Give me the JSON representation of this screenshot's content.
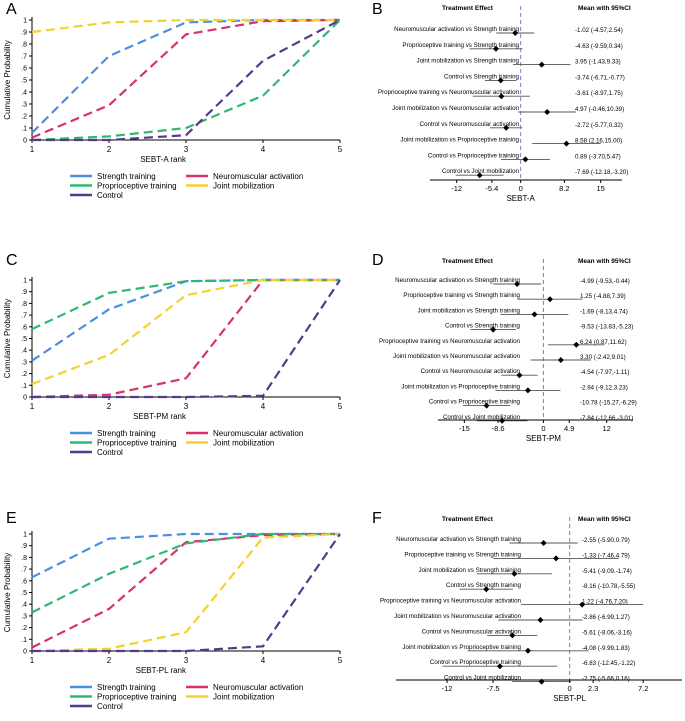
{
  "figure": {
    "colors": {
      "Strength training": "#4a90e2",
      "Neuromuscular activation": "#d6336c",
      "Proprioceptive training": "#2eb872",
      "Joint mobilization": "#f2d22e",
      "Control": "#553a8c",
      "forest_ref": "#7b7bdb",
      "axis": "#000000"
    }
  },
  "chart_data": [
    {
      "panel": "A",
      "type": "line",
      "xlabel": "SEBT-A rank",
      "ylabel": "Cumulative Probability",
      "x": [
        1,
        2,
        3,
        4,
        5
      ],
      "xticks": [
        "1",
        "2",
        "3",
        "4",
        "5"
      ],
      "ylim": [
        0,
        1
      ],
      "yticks": [
        "0",
        ".1",
        ".2",
        ".3",
        ".4",
        ".5",
        ".6",
        ".7",
        ".8",
        ".9",
        "1"
      ],
      "series": [
        {
          "name": "Strength training",
          "values": [
            0.06,
            0.7,
            0.98,
            1.0,
            1.0
          ]
        },
        {
          "name": "Neuromuscular activation",
          "values": [
            0.02,
            0.29,
            0.88,
            0.99,
            1.0
          ]
        },
        {
          "name": "Proprioceptive training",
          "values": [
            0.0,
            0.03,
            0.1,
            0.37,
            1.0
          ]
        },
        {
          "name": "Joint mobilization",
          "values": [
            0.9,
            0.98,
            1.0,
            1.0,
            1.0
          ]
        },
        {
          "name": "Control",
          "values": [
            0.0,
            0.0,
            0.04,
            0.66,
            1.0
          ]
        }
      ]
    },
    {
      "panel": "B",
      "type": "forest",
      "header_left": "Treatment Effect",
      "header_right": "Mean with 95%CI",
      "xlabel": "SEBT-A",
      "xlim": [
        -17,
        19
      ],
      "ticks": [
        -12,
        -5.4,
        0,
        8.2,
        15
      ],
      "tick_labels": [
        "-12",
        "-5.4",
        "0",
        "8.2",
        "15"
      ],
      "rows": [
        {
          "label": "Neuromuscular activation vs Strength training",
          "mean": -1.02,
          "lo": -4.57,
          "hi": 2.54,
          "ci_text": "-1.02 (-4.57,2.54)"
        },
        {
          "label": "Proprioceptive training vs Strength training",
          "mean": -4.63,
          "lo": -9.59,
          "hi": 0.34,
          "ci_text": "-4.63 (-9.59,0.34)"
        },
        {
          "label": "Joint mobilization vs Strength training",
          "mean": 3.95,
          "lo": -1.43,
          "hi": 9.33,
          "ci_text": "3.95 (-1.43,9.33)"
        },
        {
          "label": "Control vs Strength training",
          "mean": -3.74,
          "lo": -6.71,
          "hi": -0.77,
          "ci_text": "-3.74 (-6.71,-0.77)"
        },
        {
          "label": "Proprioceptive training vs Neuromuscular activation",
          "mean": -3.61,
          "lo": -8.97,
          "hi": 1.75,
          "ci_text": "-3.61 (-8.97,1.75)"
        },
        {
          "label": "Joint mobilization vs Neuromuscular activation",
          "mean": 4.97,
          "lo": -0.46,
          "hi": 10.39,
          "ci_text": "4.97 (-0.46,10.39)"
        },
        {
          "label": "Control vs Neuromuscular activation",
          "mean": -2.72,
          "lo": -5.77,
          "hi": 0.32,
          "ci_text": "-2.72 (-5.77,0.32)"
        },
        {
          "label": "Joint mobilization vs Proprioceptive training",
          "mean": 8.58,
          "lo": 2.16,
          "hi": 15.0,
          "ci_text": "8.58 (2.16,15.00)"
        },
        {
          "label": "Control vs Proprioceptive training",
          "mean": 0.89,
          "lo": -3.7,
          "hi": 5.47,
          "ci_text": "0.89 (-3.70,5.47)"
        },
        {
          "label": "Control vs Joint mobilization",
          "mean": -7.69,
          "lo": -12.18,
          "hi": -3.2,
          "ci_text": "-7.69 (-12.18,-3.20)"
        }
      ]
    },
    {
      "panel": "C",
      "type": "line",
      "xlabel": "SEBT-PM rank",
      "ylabel": "Cumulative Probability",
      "x": [
        1,
        2,
        3,
        4,
        5
      ],
      "xticks": [
        "1",
        "2",
        "3",
        "4",
        "5"
      ],
      "ylim": [
        0,
        1
      ],
      "yticks": [
        "0",
        ".1",
        ".2",
        ".3",
        ".4",
        ".5",
        ".6",
        ".7",
        ".8",
        ".9",
        "1"
      ],
      "series": [
        {
          "name": "Strength training",
          "values": [
            0.31,
            0.75,
            0.99,
            1.0,
            1.0
          ]
        },
        {
          "name": "Neuromuscular activation",
          "values": [
            0.0,
            0.02,
            0.16,
            1.0,
            1.0
          ]
        },
        {
          "name": "Proprioceptive training",
          "values": [
            0.58,
            0.89,
            0.99,
            1.0,
            1.0
          ]
        },
        {
          "name": "Joint mobilization",
          "values": [
            0.11,
            0.36,
            0.87,
            1.0,
            1.0
          ]
        },
        {
          "name": "Control",
          "values": [
            0.0,
            0.0,
            0.0,
            0.01,
            1.0
          ]
        }
      ]
    },
    {
      "panel": "D",
      "type": "forest",
      "header_left": "Treatment Effect",
      "header_right": "Mean with 95%CI",
      "xlabel": "SEBT-PM",
      "xlim": [
        -20,
        17
      ],
      "ticks": [
        -15,
        -8.6,
        0,
        4.9,
        12
      ],
      "tick_labels": [
        "-15",
        "-8.6",
        "0",
        "4.9",
        "12"
      ],
      "rows": [
        {
          "label": "Neuromuscular activation  vs Strength training",
          "mean": -4.99,
          "lo": -9.53,
          "hi": -0.44,
          "ci_text": "-4.99 (-9.53,-0.44)"
        },
        {
          "label": "Proprioceptive training vs Strength training",
          "mean": 1.25,
          "lo": -4.88,
          "hi": 7.39,
          "ci_text": "1.25 (-4.88,7.39)"
        },
        {
          "label": "Joint mobilization vs Strength training",
          "mean": -1.69,
          "lo": -8.13,
          "hi": 4.74,
          "ci_text": "-1.69 (-8.13,4.74)"
        },
        {
          "label": "Control vs Strength training",
          "mean": -9.53,
          "lo": -13.83,
          "hi": -5.23,
          "ci_text": "-9.53 (-13.83,-5.23)"
        },
        {
          "label": "Proprioceptive training vs Neuromuscular activation",
          "mean": 6.24,
          "lo": 0.87,
          "hi": 11.62,
          "ci_text": "6.24 (0.87,11.62)"
        },
        {
          "label": "Joint mobilization vs Neuromuscular activation",
          "mean": 3.3,
          "lo": -2.42,
          "hi": 9.01,
          "ci_text": "3.30 (-2.42,9.01)"
        },
        {
          "label": "Control vs Neuromuscular activation",
          "mean": -4.54,
          "lo": -7.97,
          "hi": -1.11,
          "ci_text": "-4.54 (-7.97,-1.11)"
        },
        {
          "label": "Joint mobilization vs Proprioceptive training",
          "mean": -2.94,
          "lo": -9.12,
          "hi": 3.23,
          "ci_text": "-2.94 (-9.12,3.23)"
        },
        {
          "label": "Control vs Proprioceptive training",
          "mean": -10.78,
          "lo": -15.27,
          "hi": -6.29,
          "ci_text": "-10.78 (-15.27,-6.29)"
        },
        {
          "label": "Control vs Joint mobilization",
          "mean": -7.84,
          "lo": -12.66,
          "hi": -3.01,
          "ci_text": "-7.84 (-12.66,-3.01)"
        }
      ]
    },
    {
      "panel": "E",
      "type": "line",
      "xlabel": "SEBT-PL rank",
      "ylabel": "Cumulative Probability",
      "x": [
        1,
        2,
        3,
        4,
        5
      ],
      "xticks": [
        "1",
        "2",
        "3",
        "4",
        "5"
      ],
      "ylim": [
        0,
        1
      ],
      "yticks": [
        "0",
        ".1",
        ".2",
        ".3",
        ".4",
        ".5",
        ".6",
        ".7",
        ".8",
        ".9",
        "1"
      ],
      "series": [
        {
          "name": "Strength training",
          "values": [
            0.63,
            0.96,
            1.0,
            1.0,
            1.0
          ]
        },
        {
          "name": "Neuromuscular activation",
          "values": [
            0.03,
            0.36,
            0.93,
            0.99,
            1.0
          ]
        },
        {
          "name": "Proprioceptive training",
          "values": [
            0.33,
            0.66,
            0.92,
            1.0,
            1.0
          ]
        },
        {
          "name": "Joint mobilization",
          "values": [
            0.0,
            0.02,
            0.16,
            0.97,
            1.0
          ]
        },
        {
          "name": "Control",
          "values": [
            0.0,
            0.0,
            0.0,
            0.04,
            1.0
          ]
        }
      ]
    },
    {
      "panel": "F",
      "type": "forest",
      "header_left": "Treatment Effect",
      "header_right": "Mean with 95%CI",
      "xlabel": "SEBT-PL",
      "xlim": [
        -17,
        11
      ],
      "ticks": [
        -12,
        -7.5,
        0,
        2.3,
        7.2
      ],
      "tick_labels": [
        "-12",
        "-7.5",
        "0",
        "2.3",
        "7.2"
      ],
      "rows": [
        {
          "label": "Neuromuscular activation vs Strength training",
          "mean": -2.55,
          "lo": -5.9,
          "hi": 0.79,
          "ci_text": "-2.55 (-5.90,0.79)"
        },
        {
          "label": "Proprioceptive training vs Strength training",
          "mean": -1.33,
          "lo": -7.46,
          "hi": 4.79,
          "ci_text": "-1.33 (-7.46,4.79)"
        },
        {
          "label": "Joint mobilization vs Strength training",
          "mean": -5.41,
          "lo": -9.09,
          "hi": -1.74,
          "ci_text": "-5.41 (-9.09,-1.74)"
        },
        {
          "label": "Control vs Strength training",
          "mean": -8.16,
          "lo": -10.78,
          "hi": -5.55,
          "ci_text": "-8.16 (-10.78,-5.55)"
        },
        {
          "label": "Proprioceptive training vs Neuromuscular activation",
          "mean": 1.22,
          "lo": -4.76,
          "hi": 7.2,
          "ci_text": "1.22 (-4.76,7.20)"
        },
        {
          "label": "Joint mobilization vs Neuromuscular activation",
          "mean": -2.86,
          "lo": -6.99,
          "hi": 1.27,
          "ci_text": "-2.86 (-6.99,1.27)"
        },
        {
          "label": "Control vs Neuromuscular activation",
          "mean": -5.61,
          "lo": -8.06,
          "hi": -3.16,
          "ci_text": "-5.61 (-8.06,-3.16)"
        },
        {
          "label": "Joint mobilization vs Proprioceptive training",
          "mean": -4.08,
          "lo": -9.99,
          "hi": 1.83,
          "ci_text": "-4.08 (-9.99,1.83)"
        },
        {
          "label": "Control vs Proprioceptive training",
          "mean": -6.83,
          "lo": -12.45,
          "hi": -1.22,
          "ci_text": "-6.83 (-12.45,-1.22)"
        },
        {
          "label": "Control vs Joint mobilization",
          "mean": -2.75,
          "lo": -5.66,
          "hi": 0.16,
          "ci_text": "-2.75 (-5.66,0.16)"
        }
      ]
    }
  ]
}
